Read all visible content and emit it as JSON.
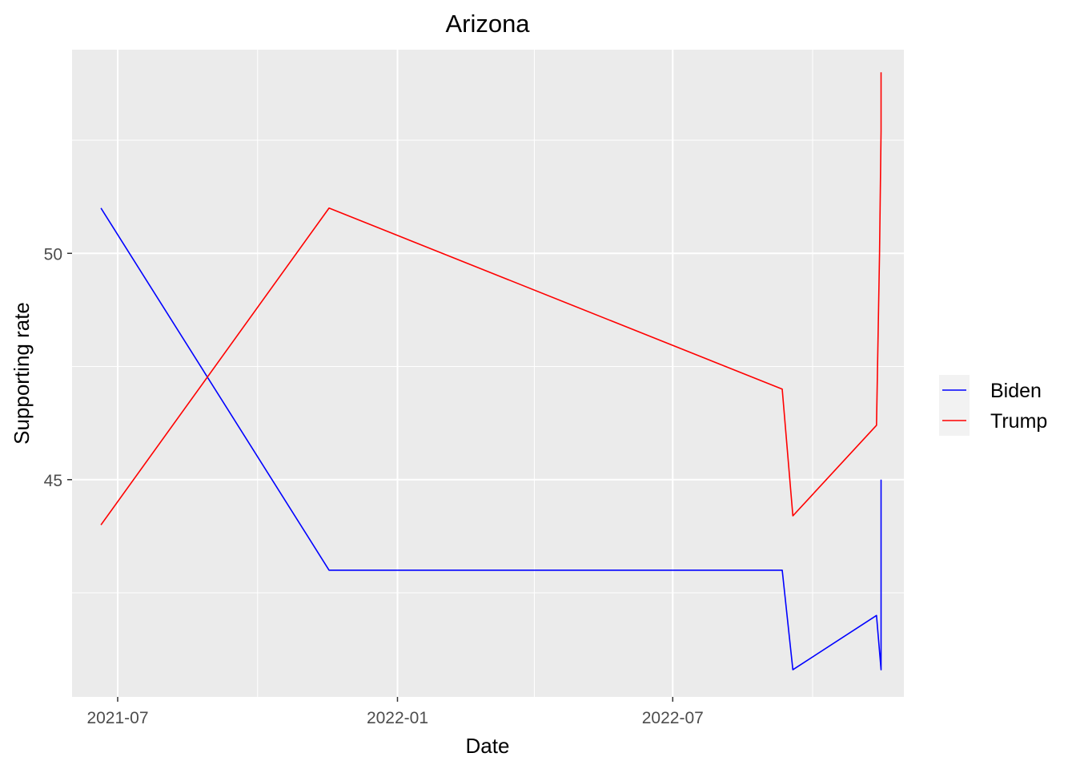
{
  "chart_data": {
    "type": "line",
    "title": "Arizona",
    "xlabel": "Date",
    "ylabel": "Supporting rate",
    "x_ticks": [
      "2021-07",
      "2022-01",
      "2022-07"
    ],
    "y_ticks": [
      45,
      50
    ],
    "xlim": [
      "2021-06-01",
      "2022-11-30"
    ],
    "ylim": [
      40.2,
      54.5
    ],
    "grid": true,
    "legend_position": "right",
    "series": [
      {
        "name": "Biden",
        "color": "#0000ff",
        "points": [
          {
            "x": "2021-06-20",
            "y": 51.0
          },
          {
            "x": "2021-11-17",
            "y": 43.0
          },
          {
            "x": "2022-09-11",
            "y": 43.0
          },
          {
            "x": "2022-09-18",
            "y": 40.8
          },
          {
            "x": "2022-11-12",
            "y": 42.0
          },
          {
            "x": "2022-11-15",
            "y": 40.8
          },
          {
            "x": "2022-11-15",
            "y": 45.0
          }
        ]
      },
      {
        "name": "Trump",
        "color": "#ff0000",
        "points": [
          {
            "x": "2021-06-20",
            "y": 44.0
          },
          {
            "x": "2021-11-17",
            "y": 51.0
          },
          {
            "x": "2022-09-11",
            "y": 47.0
          },
          {
            "x": "2022-09-18",
            "y": 44.2
          },
          {
            "x": "2022-11-12",
            "y": 46.2
          },
          {
            "x": "2022-11-14",
            "y": 50.0
          },
          {
            "x": "2022-11-15",
            "y": 52.7
          },
          {
            "x": "2022-11-15",
            "y": 54.0
          }
        ]
      }
    ]
  }
}
